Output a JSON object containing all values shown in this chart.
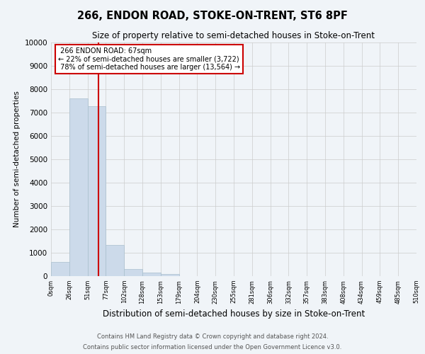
{
  "title": "266, ENDON ROAD, STOKE-ON-TRENT, ST6 8PF",
  "subtitle": "Size of property relative to semi-detached houses in Stoke-on-Trent",
  "xlabel": "Distribution of semi-detached houses by size in Stoke-on-Trent",
  "ylabel": "Number of semi-detached properties",
  "footnote1": "Contains HM Land Registry data © Crown copyright and database right 2024.",
  "footnote2": "Contains public sector information licensed under the Open Government Licence v3.0.",
  "bar_values": [
    600,
    7620,
    7280,
    1340,
    310,
    150,
    80,
    0,
    0,
    0,
    0,
    0,
    0,
    0,
    0,
    0,
    0,
    0,
    0,
    0
  ],
  "bin_labels": [
    "0sqm",
    "26sqm",
    "51sqm",
    "77sqm",
    "102sqm",
    "128sqm",
    "153sqm",
    "179sqm",
    "204sqm",
    "230sqm",
    "255sqm",
    "281sqm",
    "306sqm",
    "332sqm",
    "357sqm",
    "383sqm",
    "408sqm",
    "434sqm",
    "459sqm",
    "485sqm",
    "510sqm"
  ],
  "bar_color": "#ccdaea",
  "bar_edge_color": "#a8bfce",
  "property_size_sqm": 67,
  "bin_edges": [
    0,
    26,
    51,
    77,
    102,
    128,
    153,
    179,
    204,
    230,
    255,
    281,
    306,
    332,
    357,
    383,
    408,
    434,
    459,
    485,
    510
  ],
  "property_label": "266 ENDON ROAD: 67sqm",
  "smaller_pct": "22%",
  "smaller_count": "3,722",
  "larger_pct": "78%",
  "larger_count": "13,564",
  "annotation_box_color": "#ffffff",
  "annotation_box_edge": "#cc0000",
  "ylim": [
    0,
    10000
  ],
  "yticks": [
    0,
    1000,
    2000,
    3000,
    4000,
    5000,
    6000,
    7000,
    8000,
    9000,
    10000
  ],
  "grid_color": "#cccccc",
  "bg_color": "#f0f4f8"
}
